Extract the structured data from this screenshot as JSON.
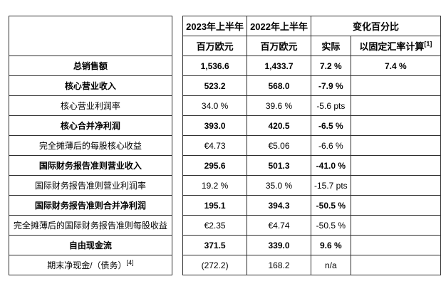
{
  "page": {
    "background_color": "#ffffff",
    "text_color": "#000000",
    "border_color": "#2e2e2e"
  },
  "table": {
    "header": {
      "col_2023": "2023年上半年",
      "col_2022": "2022年上半年",
      "col_change": "变化百分比",
      "unit_2023": "百万欧元",
      "unit_2022": "百万欧元",
      "col_actual": "实际",
      "col_fixed_rate": "以固定汇率计算",
      "col_fixed_rate_sup": "[1]"
    },
    "rows": [
      {
        "label": "总销售额",
        "bold": true,
        "values": [
          "1,536.6",
          "1,433.7",
          "7.2 %",
          "7.4 %"
        ]
      },
      {
        "label": "核心营业收入",
        "bold": true,
        "values": [
          "523.2",
          "568.0",
          "-7.9 %",
          ""
        ]
      },
      {
        "label": "核心营业利润率",
        "bold": false,
        "values": [
          "34.0 %",
          "39.6 %",
          "-5.6 pts",
          ""
        ]
      },
      {
        "label": "核心合并净利润",
        "bold": true,
        "values": [
          "393.0",
          "420.5",
          "-6.5 %",
          ""
        ]
      },
      {
        "label": "完全摊薄后的每股核心收益",
        "bold": false,
        "values": [
          "€4.73",
          "€5.06",
          "-6.6 %",
          ""
        ]
      },
      {
        "label": "国际财务报告准则营业收入",
        "bold": true,
        "values": [
          "295.6",
          "501.3",
          "-41.0 %",
          ""
        ]
      },
      {
        "label": "国际财务报告准则营业利润率",
        "bold": false,
        "values": [
          "19.2 %",
          "35.0 %",
          "-15.7 pts",
          ""
        ]
      },
      {
        "label": "国际财务报告准则合并净利润",
        "bold": true,
        "values": [
          "195.1",
          "394.3",
          "-50.5 %",
          ""
        ]
      },
      {
        "label": "完全摊薄后的国际财务报告准则每股收益",
        "bold": false,
        "values": [
          "€2.35",
          "€4.74",
          "-50.5 %",
          ""
        ]
      },
      {
        "label": "自由现金流",
        "bold": true,
        "values": [
          "371.5",
          "339.0",
          "9.6 %",
          ""
        ]
      },
      {
        "label": "期末净现金/（债务）",
        "label_sup": "[4]",
        "bold": false,
        "values": [
          "(272.2)",
          "168.2",
          "n/a",
          ""
        ]
      }
    ]
  }
}
